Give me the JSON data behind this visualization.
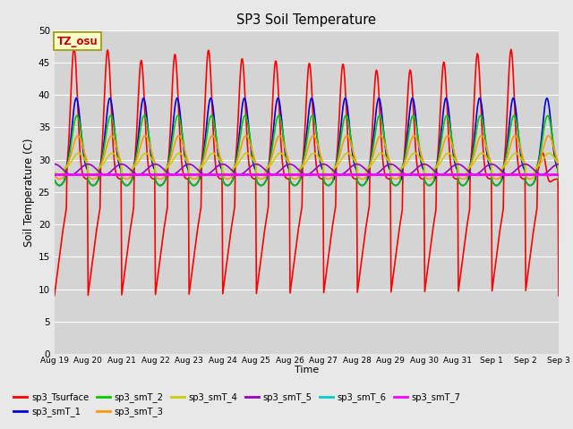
{
  "title": "SP3 Soil Temperature",
  "ylabel": "Soil Temperature (C)",
  "xlabel": "Time",
  "ylim": [
    0,
    50
  ],
  "background_color": "#e8e8e8",
  "plot_bg_color": "#d4d4d4",
  "grid_color": "#ffffff",
  "annotation_text": "TZ_osu",
  "annotation_bg": "#ffffcc",
  "annotation_fg": "#cc0000",
  "series_order": [
    "sp3_Tsurface",
    "sp3_smT_1",
    "sp3_smT_2",
    "sp3_smT_3",
    "sp3_smT_4",
    "sp3_smT_5",
    "sp3_smT_6",
    "sp3_smT_7"
  ],
  "series": {
    "sp3_Tsurface": {
      "color": "#ff0000",
      "lw": 1.2
    },
    "sp3_smT_1": {
      "color": "#0000dd",
      "lw": 1.2
    },
    "sp3_smT_2": {
      "color": "#00cc00",
      "lw": 1.2
    },
    "sp3_smT_3": {
      "color": "#ff9900",
      "lw": 1.2
    },
    "sp3_smT_4": {
      "color": "#cccc00",
      "lw": 1.2
    },
    "sp3_smT_5": {
      "color": "#9900cc",
      "lw": 1.2
    },
    "sp3_smT_6": {
      "color": "#00cccc",
      "lw": 1.5
    },
    "sp3_smT_7": {
      "color": "#ff00ff",
      "lw": 2.0
    }
  },
  "tick_dates": [
    "Aug 19",
    "Aug 20",
    "Aug 21",
    "Aug 22",
    "Aug 23",
    "Aug 24",
    "Aug 25",
    "Aug 26",
    "Aug 27",
    "Aug 28",
    "Aug 29",
    "Aug 30",
    "Aug 31",
    "Sep 1",
    "Sep 2",
    "Sep 3"
  ],
  "yticks": [
    0,
    5,
    10,
    15,
    20,
    25,
    30,
    35,
    40,
    45,
    50
  ]
}
